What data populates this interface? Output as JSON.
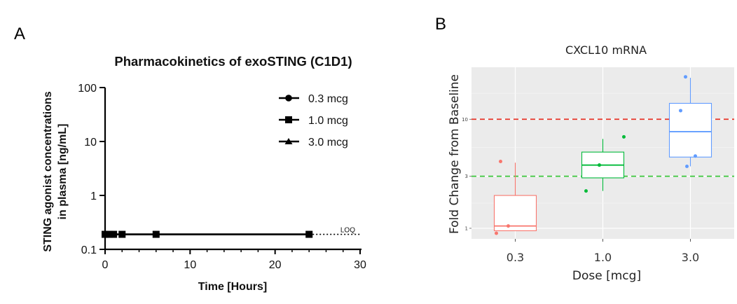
{
  "figure": {
    "panel_a_label": "A",
    "panel_b_label": "B"
  },
  "chart_data": [
    {
      "type": "line",
      "title": "Pharmacokinetics of exoSTING (C1D1)",
      "xlabel": "Time [Hours]",
      "ylabel": [
        "STING agonist concentrations",
        "in plasma [ng/mL]"
      ],
      "yscale": "log",
      "xlim": [
        0,
        30
      ],
      "ylim": [
        0.1,
        100
      ],
      "x_ticks": [
        0,
        10,
        20,
        30
      ],
      "y_ticks": [
        0.1,
        1,
        10,
        100
      ],
      "y_tick_labels": [
        "0.1",
        "1",
        "10",
        "100"
      ],
      "loq_label": "LOQ",
      "loq_value": 0.19,
      "legend_position": "top-right",
      "series": [
        {
          "name": "0.3 mcg",
          "marker": "circle",
          "x": [
            0,
            0.5,
            1,
            2,
            6,
            24
          ],
          "y": [
            0.19,
            0.19,
            0.19,
            0.19,
            0.19,
            0.19
          ]
        },
        {
          "name": "1.0 mcg",
          "marker": "square",
          "x": [
            0,
            0.5,
            1,
            2,
            6,
            24
          ],
          "y": [
            0.19,
            0.19,
            0.19,
            0.19,
            0.19,
            0.19
          ]
        },
        {
          "name": "3.0 mcg",
          "marker": "triangle",
          "x": [
            0,
            0.5,
            1,
            2,
            6,
            24
          ],
          "y": [
            0.19,
            0.19,
            0.19,
            0.19,
            0.19,
            0.19
          ]
        }
      ]
    },
    {
      "type": "box",
      "title": "CXCL10 mRNA",
      "xlabel": "Dose [mcg]",
      "ylabel": "Fold Change from Baseline",
      "yscale": "log",
      "ylim": [
        0.8,
        30
      ],
      "y_ticks": [
        1,
        3,
        10
      ],
      "y_tick_labels": [
        "1",
        "3",
        "10"
      ],
      "categories": [
        "0.3",
        "1.0",
        "3.0"
      ],
      "reference_lines": [
        {
          "value": 10,
          "color": "#e8362a",
          "style": "dashed"
        },
        {
          "value": 3,
          "color": "#3cc83c",
          "style": "dashed"
        }
      ],
      "boxes": [
        {
          "category": "0.3",
          "color": "#f8766d",
          "whisker_low": 0.95,
          "q1": 0.95,
          "median": 1.05,
          "q3": 2.0,
          "whisker_high": 4.0,
          "points": [
            0.9,
            1.05,
            4.1
          ]
        },
        {
          "category": "1.0",
          "color": "#00ba38",
          "whisker_low": 2.2,
          "q1": 2.9,
          "median": 3.8,
          "q3": 5.0,
          "whisker_high": 6.6,
          "points": [
            2.2,
            3.8,
            6.9
          ]
        },
        {
          "category": "3.0",
          "color": "#619cff",
          "whisker_low": 3.7,
          "q1": 4.5,
          "median": 7.7,
          "q3": 14.0,
          "whisker_high": 24.0,
          "points": [
            3.7,
            4.6,
            12.0,
            24.5
          ]
        }
      ]
    }
  ]
}
